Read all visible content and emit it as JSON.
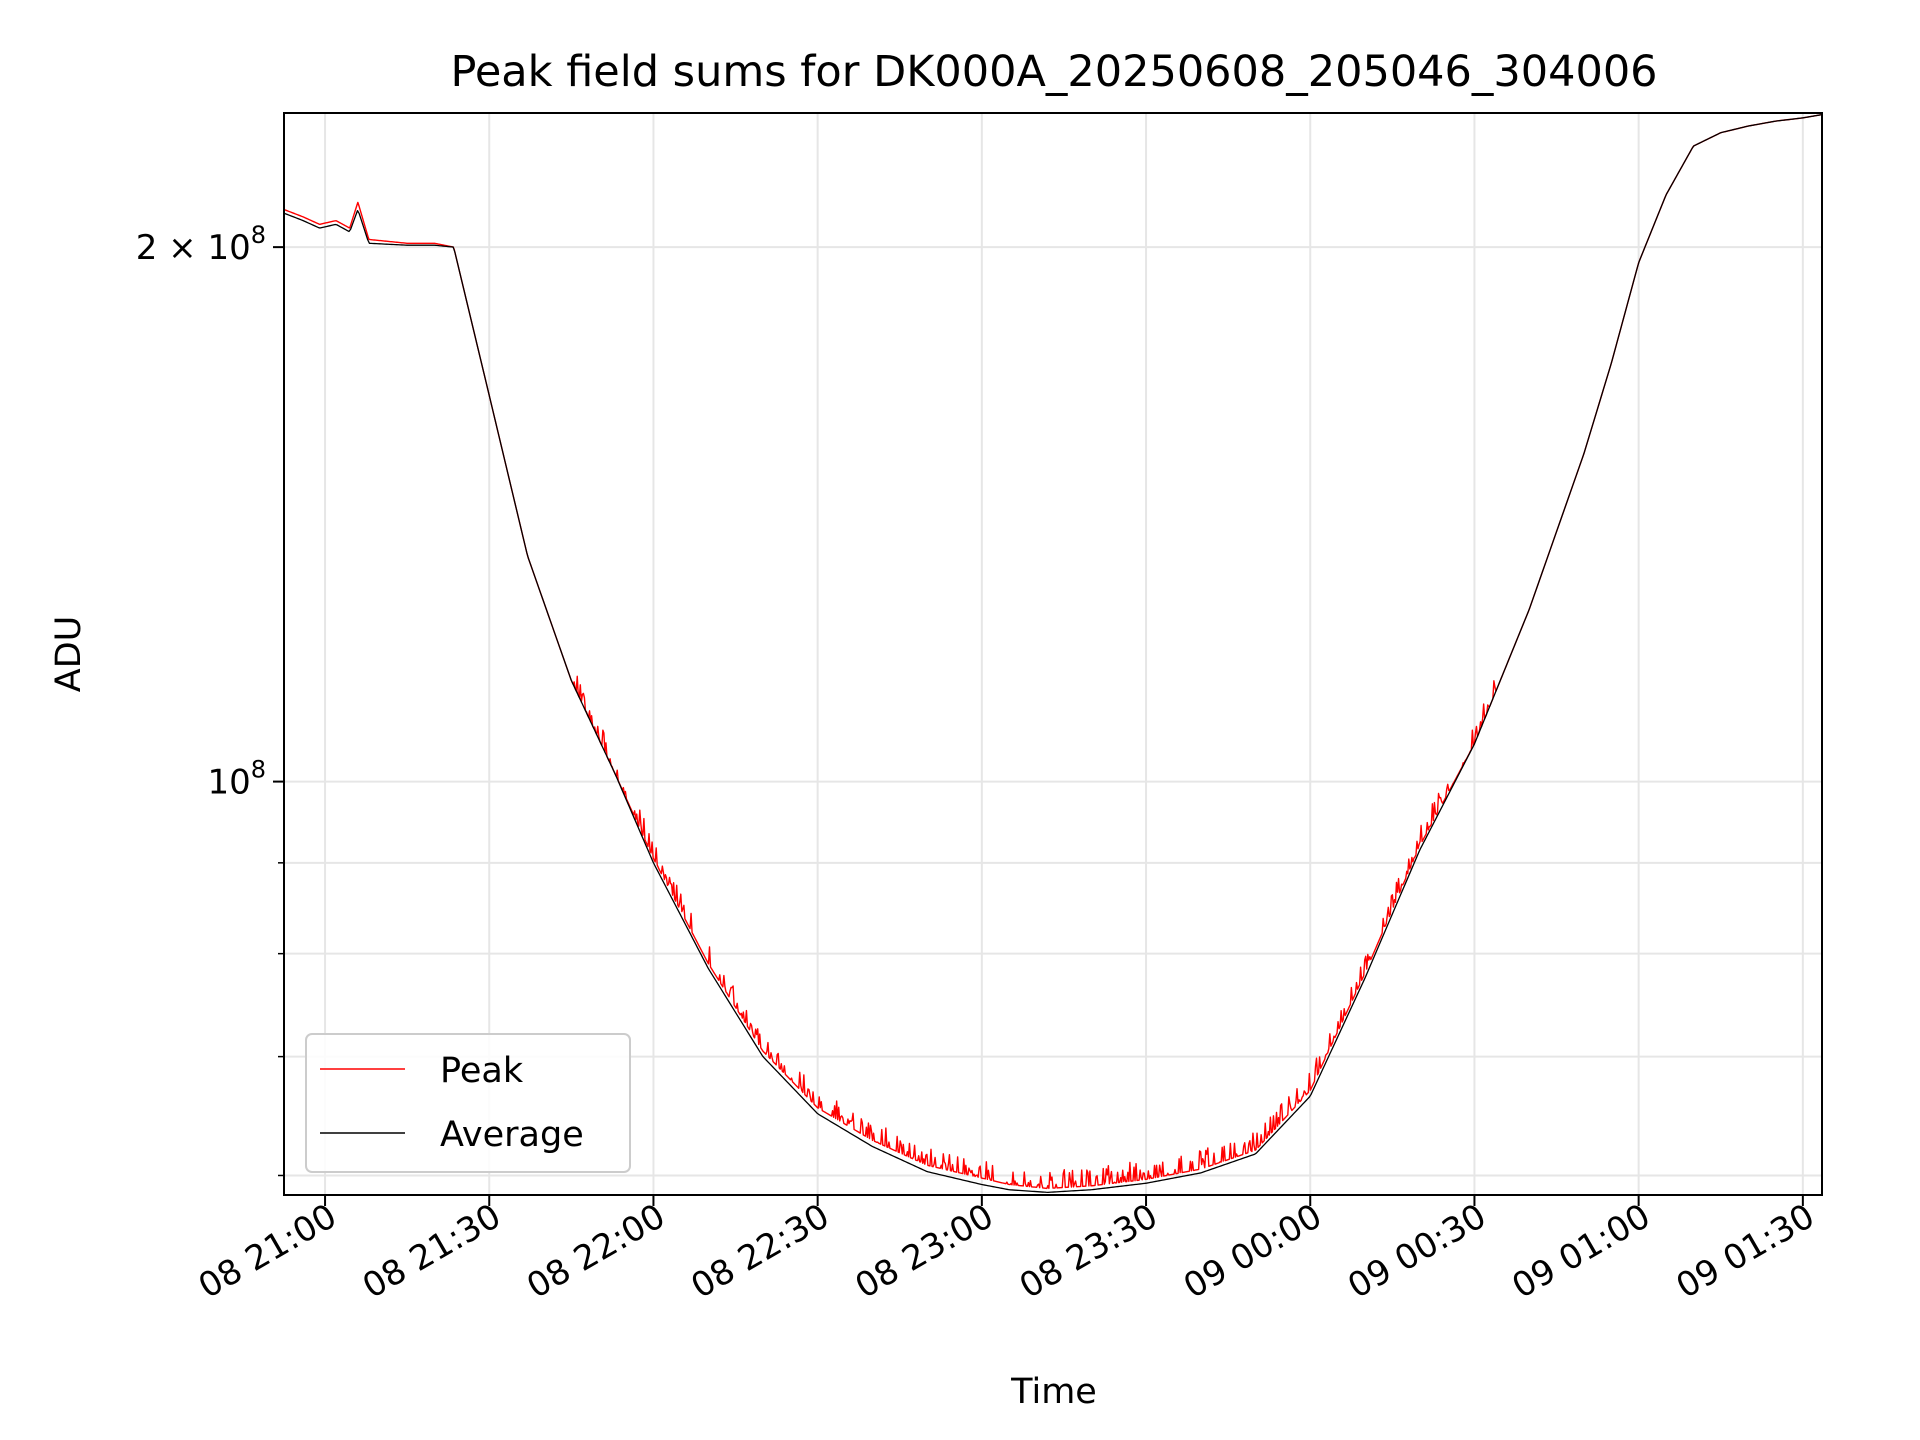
{
  "chart_data": {
    "type": "line",
    "title": "Peak field sums for DK000A_20250608_205046_304006",
    "xlabel": "Time",
    "ylabel": "ADU",
    "yscale": "log",
    "grid": true,
    "legend_position": "lower-left",
    "xlim": [
      "2025-06-08T20:52:30",
      "2025-06-09T01:33:30"
    ],
    "ylim": [
      58500000,
      238000000
    ],
    "x_ticks": [
      {
        "value": "2025-06-08T21:00:00",
        "label": "08 21:00"
      },
      {
        "value": "2025-06-08T21:30:00",
        "label": "08 21:30"
      },
      {
        "value": "2025-06-08T22:00:00",
        "label": "08 22:00"
      },
      {
        "value": "2025-06-08T22:30:00",
        "label": "08 22:30"
      },
      {
        "value": "2025-06-08T23:00:00",
        "label": "08 23:00"
      },
      {
        "value": "2025-06-08T23:30:00",
        "label": "08 23:30"
      },
      {
        "value": "2025-06-09T00:00:00",
        "label": "09 00:00"
      },
      {
        "value": "2025-06-09T00:30:00",
        "label": "09 00:30"
      },
      {
        "value": "2025-06-09T01:00:00",
        "label": "09 01:00"
      },
      {
        "value": "2025-06-09T01:30:00",
        "label": "09 01:30"
      }
    ],
    "y_major_ticks": [
      {
        "value": 100000000,
        "base": "10",
        "exp": "8",
        "mant": ""
      },
      {
        "value": 200000000,
        "base": "10",
        "exp": "8",
        "mant": "2 × "
      }
    ],
    "y_minor_ticks": [
      60000000,
      70000000,
      80000000,
      90000000
    ],
    "series": [
      {
        "name": "Peak",
        "color": "#ff0000",
        "x": [
          "2025-06-08T20:52:30",
          "2025-06-08T20:56:00",
          "2025-06-08T20:59:00",
          "2025-06-08T21:02:00",
          "2025-06-08T21:04:30",
          "2025-06-08T21:06:00",
          "2025-06-08T21:08:00",
          "2025-06-08T21:15:00",
          "2025-06-08T21:20:00",
          "2025-06-08T21:23:30",
          "2025-06-08T21:30:00",
          "2025-06-08T21:37:00",
          "2025-06-08T21:45:00",
          "2025-06-08T21:53:00",
          "2025-06-08T22:00:00",
          "2025-06-08T22:10:00",
          "2025-06-08T22:20:00",
          "2025-06-08T22:30:00",
          "2025-06-08T22:40:00",
          "2025-06-08T22:50:00",
          "2025-06-08T23:00:00",
          "2025-06-08T23:05:00",
          "2025-06-08T23:12:00",
          "2025-06-08T23:20:00",
          "2025-06-08T23:30:00",
          "2025-06-08T23:40:00",
          "2025-06-08T23:50:00",
          "2025-06-09T00:00:00",
          "2025-06-09T00:10:00",
          "2025-06-09T00:20:00",
          "2025-06-09T00:30:00",
          "2025-06-09T00:40:00",
          "2025-06-09T00:50:00",
          "2025-06-09T00:55:00",
          "2025-06-09T01:00:00",
          "2025-06-09T01:05:00",
          "2025-06-09T01:10:00",
          "2025-06-09T01:15:00",
          "2025-06-09T01:20:00",
          "2025-06-09T01:25:00",
          "2025-06-09T01:30:00",
          "2025-06-09T01:33:30"
        ],
        "y": [
          210000000,
          208000000,
          206000000,
          207000000,
          205000000,
          212000000,
          202000000,
          201000000,
          201000000,
          200000000,
          165000000,
          134000000,
          114000000,
          101000000,
          90500000,
          79000000,
          70500000,
          65500000,
          62800000,
          60800000,
          59800000,
          59300000,
          59000000,
          59200000,
          59700000,
          60500000,
          62000000,
          67000000,
          78000000,
          92000000,
          105000000,
          125000000,
          153000000,
          172000000,
          196000000,
          214000000,
          228000000,
          232000000,
          234000000,
          235500000,
          236500000,
          237500000
        ],
        "noise_start": "2025-06-08T21:45:00",
        "noise_end": "2025-06-09T00:35:00",
        "noise_max_fraction": 0.025
      },
      {
        "name": "Average",
        "color": "#000000",
        "x": [
          "2025-06-08T20:52:30",
          "2025-06-08T20:56:00",
          "2025-06-08T20:59:00",
          "2025-06-08T21:02:00",
          "2025-06-08T21:04:30",
          "2025-06-08T21:06:00",
          "2025-06-08T21:08:00",
          "2025-06-08T21:15:00",
          "2025-06-08T21:20:00",
          "2025-06-08T21:23:30",
          "2025-06-08T21:30:00",
          "2025-06-08T21:37:00",
          "2025-06-08T21:45:00",
          "2025-06-08T21:53:00",
          "2025-06-08T22:00:00",
          "2025-06-08T22:10:00",
          "2025-06-08T22:20:00",
          "2025-06-08T22:30:00",
          "2025-06-08T22:40:00",
          "2025-06-08T22:50:00",
          "2025-06-08T23:00:00",
          "2025-06-08T23:05:00",
          "2025-06-08T23:12:00",
          "2025-06-08T23:20:00",
          "2025-06-08T23:30:00",
          "2025-06-08T23:40:00",
          "2025-06-08T23:50:00",
          "2025-06-09T00:00:00",
          "2025-06-09T00:10:00",
          "2025-06-09T00:20:00",
          "2025-06-09T00:30:00",
          "2025-06-09T00:40:00",
          "2025-06-09T00:50:00",
          "2025-06-09T00:55:00",
          "2025-06-09T01:00:00",
          "2025-06-09T01:05:00",
          "2025-06-09T01:10:00",
          "2025-06-09T01:15:00",
          "2025-06-09T01:20:00",
          "2025-06-09T01:25:00",
          "2025-06-09T01:30:00",
          "2025-06-09T01:33:30"
        ],
        "y": [
          209000000,
          207000000,
          205000000,
          206000000,
          204000000,
          210000000,
          201000000,
          200500000,
          200500000,
          200000000,
          165000000,
          134000000,
          114000000,
          101000000,
          90000000,
          78500000,
          70000000,
          65000000,
          62300000,
          60300000,
          59300000,
          58900000,
          58700000,
          58900000,
          59400000,
          60200000,
          61700000,
          66500000,
          77500000,
          91500000,
          105000000,
          125000000,
          153000000,
          172000000,
          196000000,
          214000000,
          228000000,
          232000000,
          234000000,
          235500000,
          236500000,
          237500000
        ]
      }
    ]
  }
}
